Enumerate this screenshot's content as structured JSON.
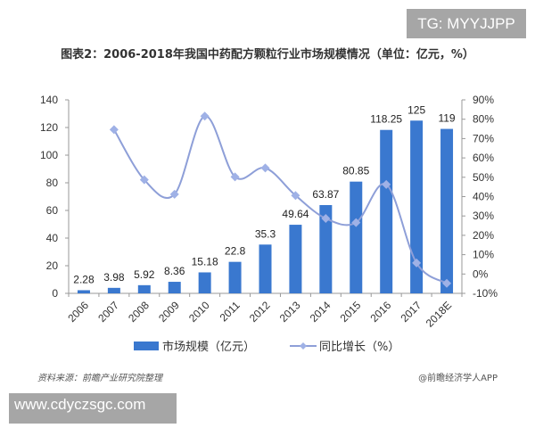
{
  "watermarks": {
    "top": "TG: MYYJJPP",
    "bottom": "www.cdyczsgc.com"
  },
  "footer": {
    "source": "资料来源：前瞻产业研究院整理",
    "credit": "@前瞻经济学人APP"
  },
  "colors": {
    "bar": "#3a78cf",
    "line": "#8e9fd8",
    "marker": "#9fb1e6"
  },
  "chart_data": {
    "type": "bar+line",
    "title": "图表2：2006-2018年我国中药配方颗粒行业市场规模情况（单位：亿元，%）",
    "categories": [
      "2006",
      "2007",
      "2008",
      "2009",
      "2010",
      "2011",
      "2012",
      "2013",
      "2014",
      "2015",
      "2016",
      "2017",
      "2018E"
    ],
    "series": [
      {
        "name": "市场规模（亿元）",
        "type": "bar",
        "axis": "left",
        "values": [
          2.28,
          3.98,
          5.92,
          8.36,
          15.18,
          22.8,
          35.3,
          49.64,
          63.87,
          80.85,
          118.25,
          125,
          119
        ],
        "labels": [
          "2.28",
          "3.98",
          "5.92",
          "8.36",
          "15.18",
          "22.8",
          "35.3",
          "49.64",
          "63.87",
          "80.85",
          "118.25",
          "125",
          "119"
        ]
      },
      {
        "name": "同比增长（%）",
        "type": "line",
        "axis": "right",
        "values": [
          null,
          74.6,
          48.7,
          41.2,
          81.6,
          50.2,
          54.8,
          40.6,
          28.7,
          26.6,
          46.3,
          5.7,
          -4.8
        ]
      }
    ],
    "y_left": {
      "range": [
        0,
        140
      ],
      "ticks": [
        "0",
        "20",
        "40",
        "60",
        "80",
        "100",
        "120",
        "140"
      ]
    },
    "y_right": {
      "range": [
        -10,
        90
      ],
      "ticks": [
        "-10%",
        "0%",
        "10%",
        "20%",
        "30%",
        "40%",
        "50%",
        "60%",
        "70%",
        "80%",
        "90%"
      ]
    },
    "grid": false,
    "legend": "bottom"
  }
}
